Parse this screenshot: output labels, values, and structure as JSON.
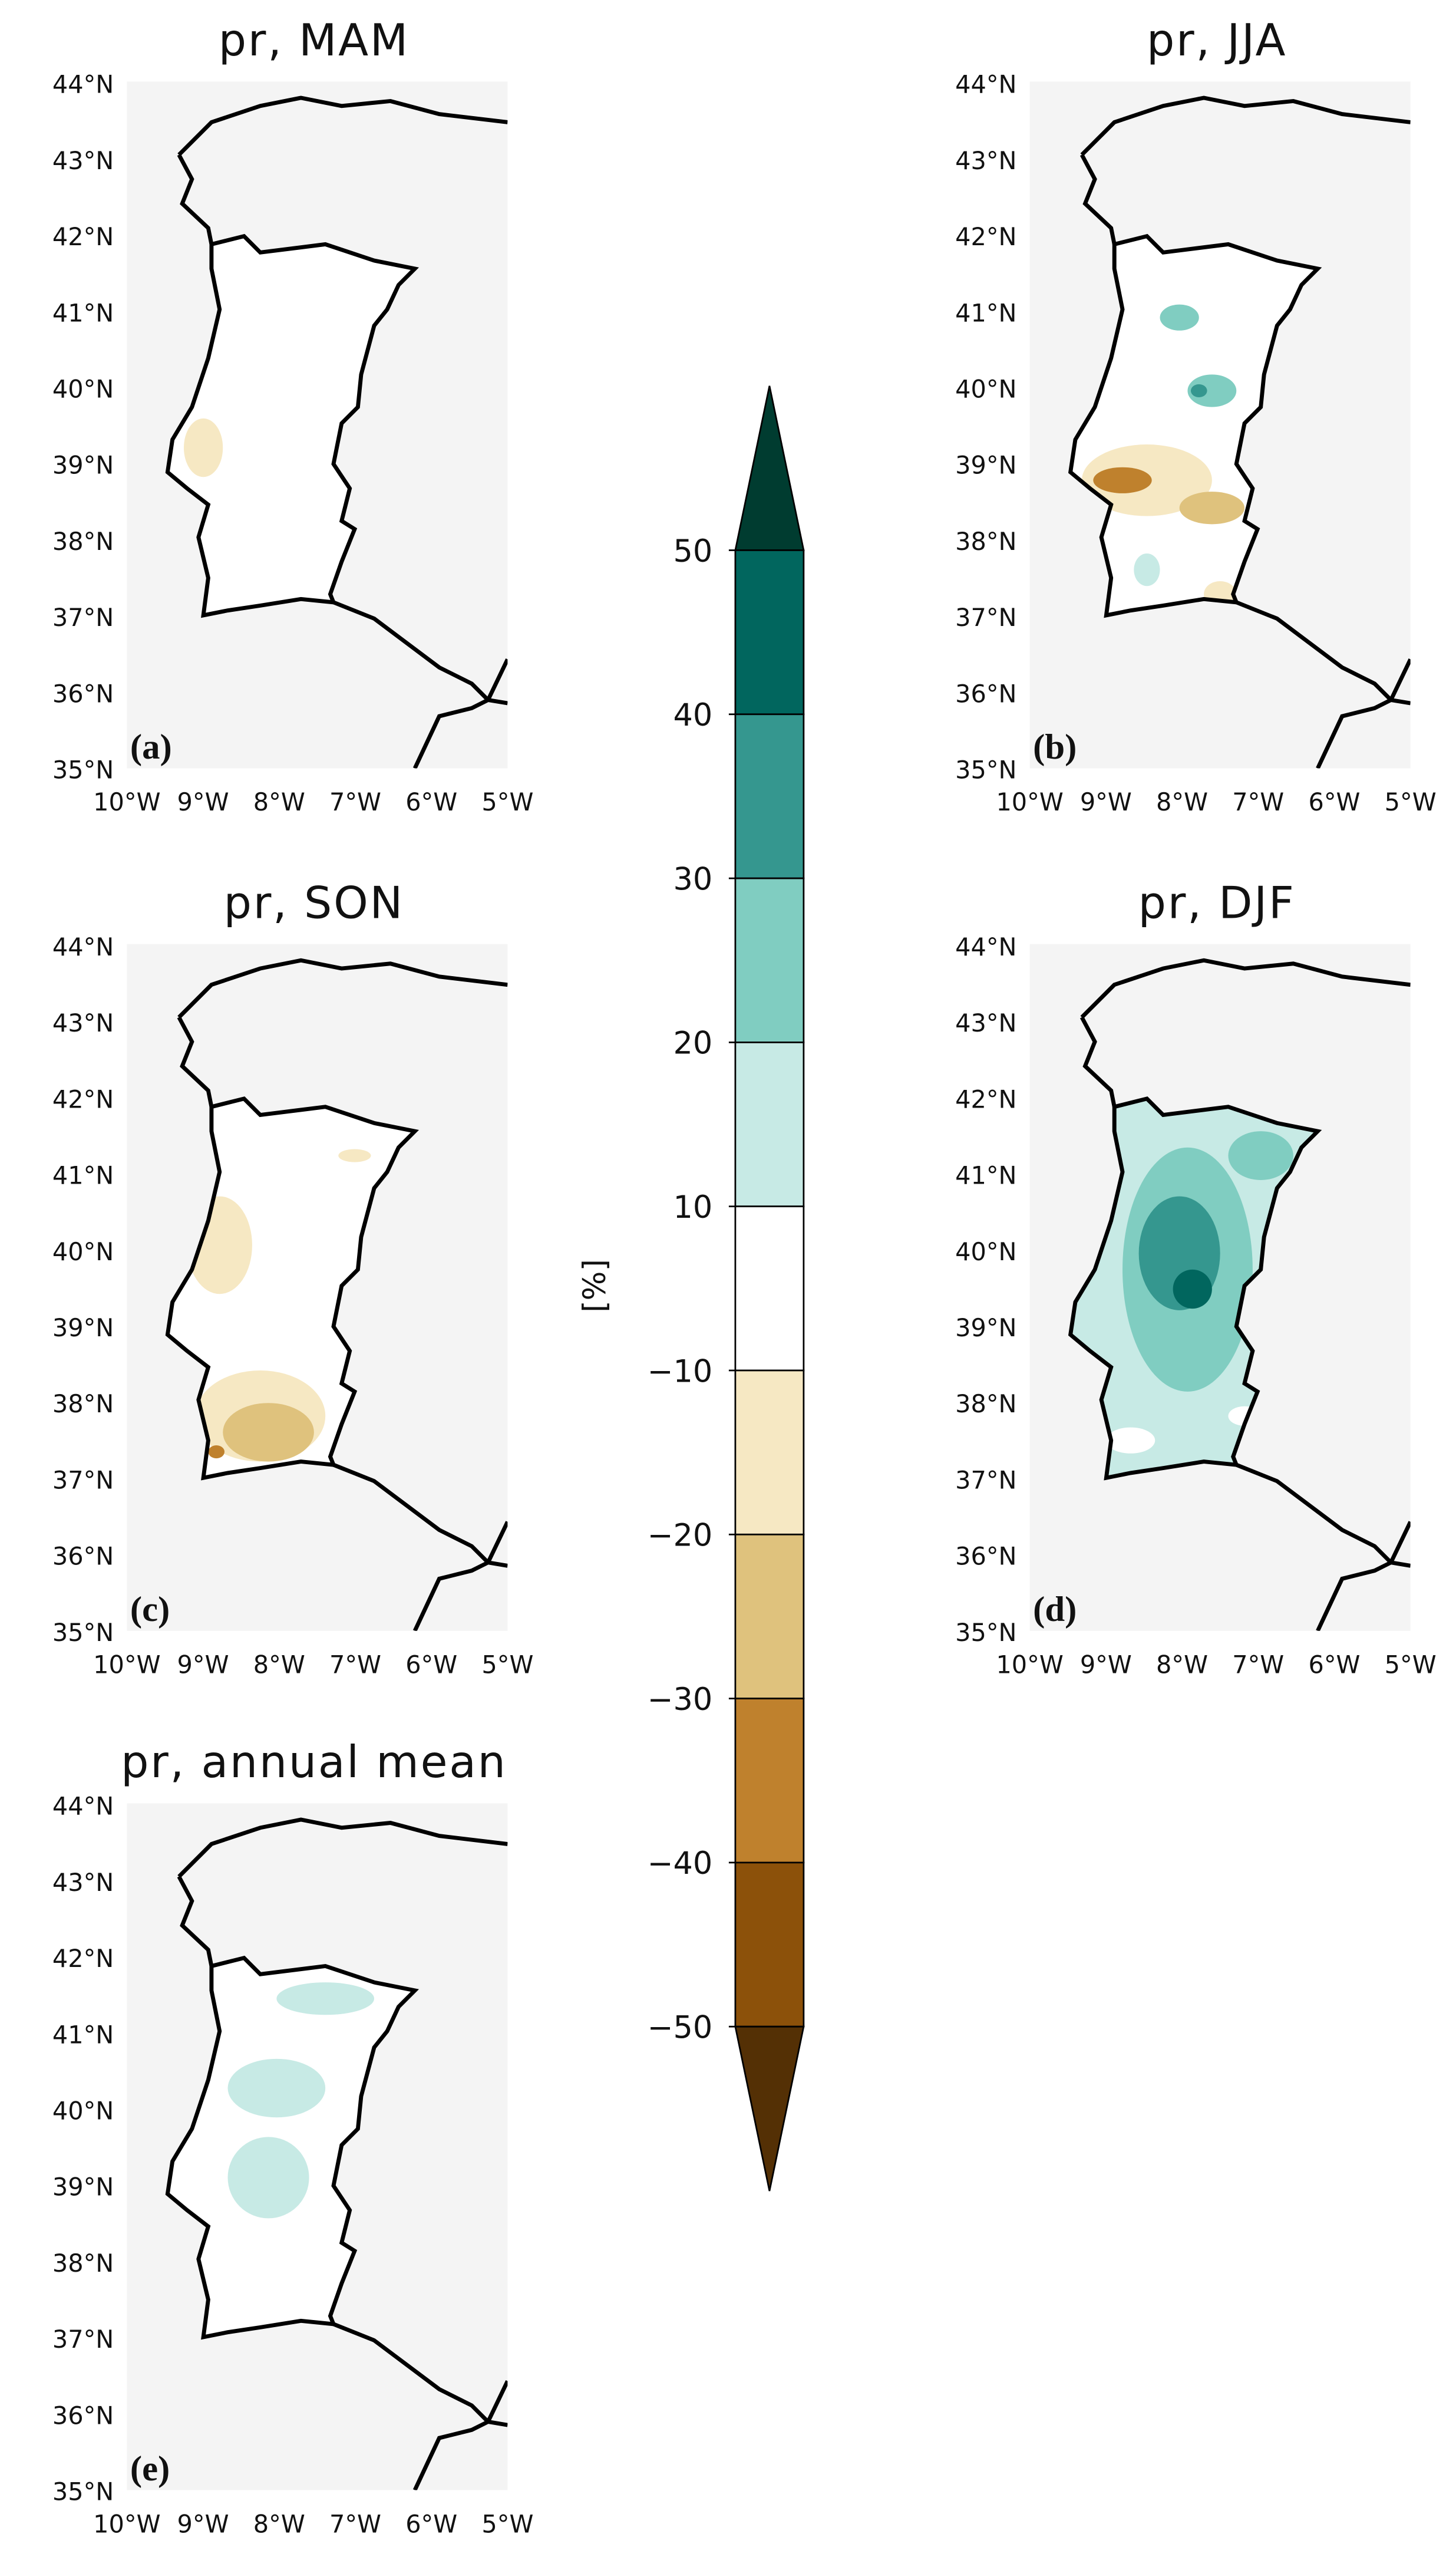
{
  "panels": [
    {
      "title": "pr, MAM",
      "letter": "(a)"
    },
    {
      "title": "pr, JJA",
      "letter": "(b)"
    },
    {
      "title": "pr, SON",
      "letter": "(c)"
    },
    {
      "title": "pr, DJF",
      "letter": "(d)"
    },
    {
      "title": "pr, annual mean",
      "letter": "(e)"
    }
  ],
  "lat_labels": [
    "44°N",
    "43°N",
    "42°N",
    "41°N",
    "40°N",
    "39°N",
    "38°N",
    "37°N",
    "36°N",
    "35°N"
  ],
  "lon_labels": [
    "10°W",
    "9°W",
    "8°W",
    "7°W",
    "6°W",
    "5°W"
  ],
  "colorbar": {
    "label": "[%]",
    "ticks": [
      50,
      40,
      30,
      20,
      10,
      {
        "value": -10,
        "label": "−10"
      },
      {
        "value": -20,
        "label": "−20"
      },
      {
        "value": -30,
        "label": "−30"
      },
      {
        "value": -40,
        "label": "−40"
      },
      {
        "value": -50,
        "label": "−50"
      }
    ],
    "colors": [
      "#543005",
      "#8c510a",
      "#bf812d",
      "#dfc27d",
      "#f6e8c3",
      "#ffffff",
      "#c7eae5",
      "#80cdc1",
      "#35978f",
      "#01665e",
      "#003c30"
    ]
  }
}
